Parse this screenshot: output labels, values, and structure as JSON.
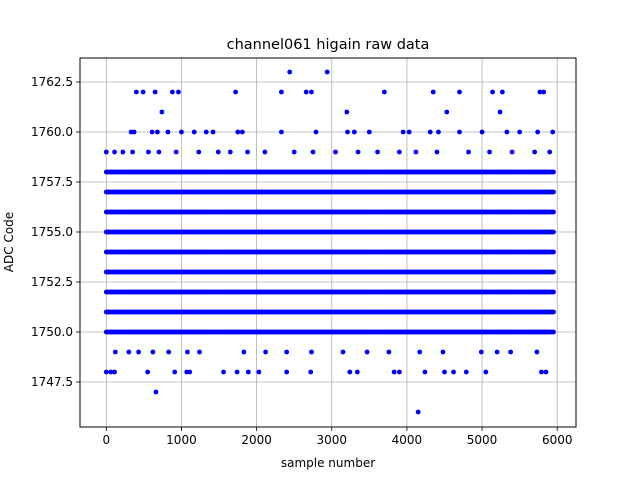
{
  "chart_data": {
    "type": "scatter",
    "title": "channel061 higain raw data",
    "xlabel": "sample number",
    "ylabel": "ADC Code",
    "xlim": [
      -350,
      6250
    ],
    "ylim": [
      1745.25,
      1763.7
    ],
    "xticks": [
      0,
      1000,
      2000,
      3000,
      4000,
      5000,
      6000
    ],
    "xtick_labels": [
      "0",
      "1000",
      "2000",
      "3000",
      "4000",
      "5000",
      "6000"
    ],
    "yticks": [
      1747.5,
      1750.0,
      1752.5,
      1755.0,
      1757.5,
      1760.0,
      1762.5
    ],
    "ytick_labels": [
      "1747.5",
      "1750.0",
      "1752.5",
      "1755.0",
      "1757.5",
      "1760.0",
      "1762.5"
    ],
    "grid": true,
    "marker_color": "#0000ff",
    "x_range": [
      0,
      5950
    ],
    "dense_levels": [
      1750,
      1751,
      1752,
      1753,
      1754,
      1755,
      1756,
      1757,
      1758
    ],
    "sparse_points": [
      {
        "x": 0,
        "y": 1759
      },
      {
        "x": 110,
        "y": 1759
      },
      {
        "x": 220,
        "y": 1759
      },
      {
        "x": 350,
        "y": 1759
      },
      {
        "x": 560,
        "y": 1759
      },
      {
        "x": 700,
        "y": 1759
      },
      {
        "x": 930,
        "y": 1759
      },
      {
        "x": 1230,
        "y": 1759
      },
      {
        "x": 1490,
        "y": 1759
      },
      {
        "x": 1650,
        "y": 1759
      },
      {
        "x": 1880,
        "y": 1759
      },
      {
        "x": 2110,
        "y": 1759
      },
      {
        "x": 2500,
        "y": 1759
      },
      {
        "x": 2750,
        "y": 1759
      },
      {
        "x": 3050,
        "y": 1759
      },
      {
        "x": 3350,
        "y": 1759
      },
      {
        "x": 3610,
        "y": 1759
      },
      {
        "x": 3900,
        "y": 1759
      },
      {
        "x": 4120,
        "y": 1759
      },
      {
        "x": 4400,
        "y": 1759
      },
      {
        "x": 4820,
        "y": 1759
      },
      {
        "x": 5100,
        "y": 1759
      },
      {
        "x": 5400,
        "y": 1759
      },
      {
        "x": 5700,
        "y": 1759
      },
      {
        "x": 5900,
        "y": 1759
      },
      {
        "x": 330,
        "y": 1760
      },
      {
        "x": 370,
        "y": 1760
      },
      {
        "x": 610,
        "y": 1760
      },
      {
        "x": 680,
        "y": 1760
      },
      {
        "x": 820,
        "y": 1760
      },
      {
        "x": 1000,
        "y": 1760
      },
      {
        "x": 1170,
        "y": 1760
      },
      {
        "x": 1330,
        "y": 1760
      },
      {
        "x": 1420,
        "y": 1760
      },
      {
        "x": 1750,
        "y": 1760
      },
      {
        "x": 1810,
        "y": 1760
      },
      {
        "x": 2330,
        "y": 1760
      },
      {
        "x": 2790,
        "y": 1760
      },
      {
        "x": 3210,
        "y": 1760
      },
      {
        "x": 3300,
        "y": 1760
      },
      {
        "x": 3500,
        "y": 1760
      },
      {
        "x": 3950,
        "y": 1760
      },
      {
        "x": 4030,
        "y": 1760
      },
      {
        "x": 4310,
        "y": 1760
      },
      {
        "x": 4420,
        "y": 1760
      },
      {
        "x": 4700,
        "y": 1760
      },
      {
        "x": 5000,
        "y": 1760
      },
      {
        "x": 5330,
        "y": 1760
      },
      {
        "x": 5500,
        "y": 1760
      },
      {
        "x": 5740,
        "y": 1760
      },
      {
        "x": 5940,
        "y": 1760
      },
      {
        "x": 740,
        "y": 1761
      },
      {
        "x": 3200,
        "y": 1761
      },
      {
        "x": 4530,
        "y": 1761
      },
      {
        "x": 5240,
        "y": 1761
      },
      {
        "x": 400,
        "y": 1762
      },
      {
        "x": 490,
        "y": 1762
      },
      {
        "x": 650,
        "y": 1762
      },
      {
        "x": 880,
        "y": 1762
      },
      {
        "x": 960,
        "y": 1762
      },
      {
        "x": 1720,
        "y": 1762
      },
      {
        "x": 2330,
        "y": 1762
      },
      {
        "x": 2660,
        "y": 1762
      },
      {
        "x": 2730,
        "y": 1762
      },
      {
        "x": 3700,
        "y": 1762
      },
      {
        "x": 4350,
        "y": 1762
      },
      {
        "x": 4700,
        "y": 1762
      },
      {
        "x": 5140,
        "y": 1762
      },
      {
        "x": 5270,
        "y": 1762
      },
      {
        "x": 5770,
        "y": 1762
      },
      {
        "x": 5820,
        "y": 1762
      },
      {
        "x": 2440,
        "y": 1763
      },
      {
        "x": 2940,
        "y": 1763
      },
      {
        "x": 120,
        "y": 1749
      },
      {
        "x": 300,
        "y": 1749
      },
      {
        "x": 430,
        "y": 1749
      },
      {
        "x": 620,
        "y": 1749
      },
      {
        "x": 830,
        "y": 1749
      },
      {
        "x": 1080,
        "y": 1749
      },
      {
        "x": 1240,
        "y": 1749
      },
      {
        "x": 1830,
        "y": 1749
      },
      {
        "x": 2120,
        "y": 1749
      },
      {
        "x": 2400,
        "y": 1749
      },
      {
        "x": 2730,
        "y": 1749
      },
      {
        "x": 3150,
        "y": 1749
      },
      {
        "x": 3470,
        "y": 1749
      },
      {
        "x": 3760,
        "y": 1749
      },
      {
        "x": 4170,
        "y": 1749
      },
      {
        "x": 4480,
        "y": 1749
      },
      {
        "x": 4990,
        "y": 1749
      },
      {
        "x": 5200,
        "y": 1749
      },
      {
        "x": 5380,
        "y": 1749
      },
      {
        "x": 5730,
        "y": 1749
      },
      {
        "x": 0,
        "y": 1748
      },
      {
        "x": 60,
        "y": 1748
      },
      {
        "x": 110,
        "y": 1748
      },
      {
        "x": 550,
        "y": 1748
      },
      {
        "x": 910,
        "y": 1748
      },
      {
        "x": 1070,
        "y": 1748
      },
      {
        "x": 1110,
        "y": 1748
      },
      {
        "x": 1560,
        "y": 1748
      },
      {
        "x": 1740,
        "y": 1748
      },
      {
        "x": 1890,
        "y": 1748
      },
      {
        "x": 2030,
        "y": 1748
      },
      {
        "x": 2400,
        "y": 1748
      },
      {
        "x": 2720,
        "y": 1748
      },
      {
        "x": 3240,
        "y": 1748
      },
      {
        "x": 3340,
        "y": 1748
      },
      {
        "x": 3830,
        "y": 1748
      },
      {
        "x": 3900,
        "y": 1748
      },
      {
        "x": 4240,
        "y": 1748
      },
      {
        "x": 4500,
        "y": 1748
      },
      {
        "x": 4620,
        "y": 1748
      },
      {
        "x": 4790,
        "y": 1748
      },
      {
        "x": 5050,
        "y": 1748
      },
      {
        "x": 5790,
        "y": 1748
      },
      {
        "x": 5850,
        "y": 1748
      },
      {
        "x": 660,
        "y": 1747
      },
      {
        "x": 4150,
        "y": 1746
      }
    ]
  }
}
